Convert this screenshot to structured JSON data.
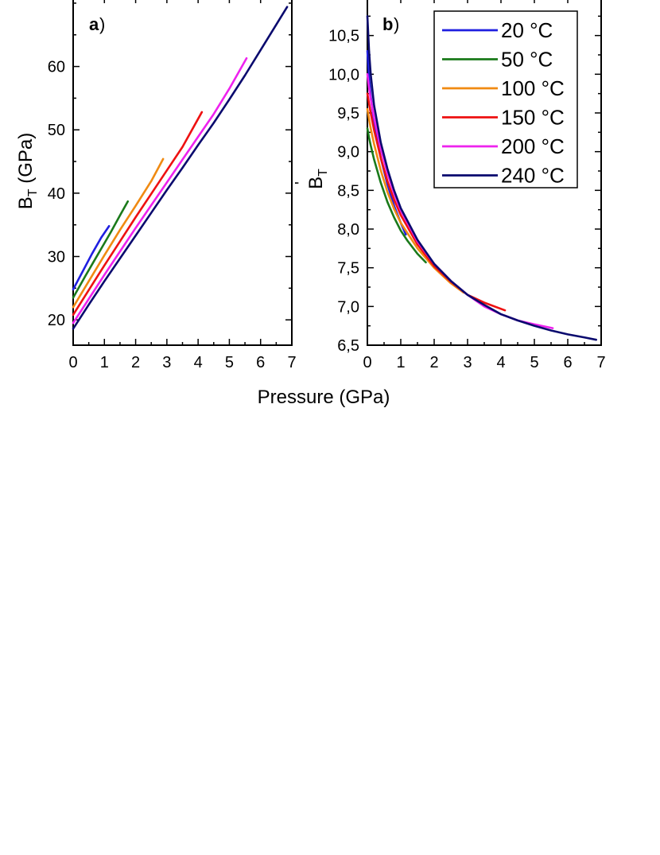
{
  "chart_data": [
    {
      "type": "line",
      "panel": "a",
      "panel_label": "a",
      "ylabel": "B",
      "ylabel_sub": "T",
      "ylabel_unit": " (GPa)",
      "xlabel": "Pressure (GPa)",
      "xlim": [
        0,
        7
      ],
      "ylim": [
        16,
        71
      ],
      "xticks": [
        0,
        1,
        2,
        3,
        4,
        5,
        6,
        7
      ],
      "yticks": [
        20,
        30,
        40,
        50,
        60
      ],
      "grid": false,
      "series": [
        {
          "name": "20 °C",
          "color": "#1f1fe0",
          "x": [
            0,
            0.3,
            0.6,
            0.9,
            1.15
          ],
          "y": [
            24.8,
            27.6,
            30.4,
            33.0,
            34.8
          ]
        },
        {
          "name": "50 °C",
          "color": "#1a7a1a",
          "x": [
            0,
            0.4,
            0.8,
            1.2,
            1.5,
            1.75
          ],
          "y": [
            23.5,
            27.0,
            30.4,
            33.8,
            36.5,
            38.7
          ]
        },
        {
          "name": "100 °C",
          "color": "#f08a12",
          "x": [
            0,
            0.5,
            1.0,
            1.5,
            2.0,
            2.5,
            2.88
          ],
          "y": [
            22.0,
            26.1,
            30.2,
            34.2,
            38.0,
            41.9,
            45.4
          ]
        },
        {
          "name": "150 °C",
          "color": "#ee1111",
          "x": [
            0,
            0.5,
            1.0,
            1.5,
            2.0,
            2.5,
            3.0,
            3.5,
            4.12
          ],
          "y": [
            20.8,
            24.7,
            28.6,
            32.4,
            36.2,
            39.9,
            43.6,
            47.3,
            52.8
          ]
        },
        {
          "name": "200 °C",
          "color": "#ee22ee",
          "x": [
            0,
            0.5,
            1.0,
            1.5,
            2.0,
            2.5,
            3.0,
            3.5,
            4.0,
            4.5,
            5.0,
            5.55
          ],
          "y": [
            19.5,
            23.3,
            27.1,
            30.8,
            34.5,
            38.1,
            41.7,
            45.3,
            48.9,
            52.5,
            56.5,
            61.3
          ]
        },
        {
          "name": "240 °C",
          "color": "#0a0a6e",
          "x": [
            0,
            0.5,
            1.0,
            1.5,
            2.0,
            2.5,
            3.0,
            3.5,
            4.0,
            4.5,
            5.0,
            5.5,
            6.0,
            6.5,
            6.85
          ],
          "y": [
            18.6,
            22.4,
            26.1,
            29.7,
            33.3,
            36.9,
            40.5,
            44.0,
            47.6,
            51.1,
            54.8,
            58.6,
            62.6,
            66.6,
            69.4
          ]
        }
      ]
    },
    {
      "type": "line",
      "panel": "b",
      "panel_label": "b",
      "ylabel": "B",
      "ylabel_sub": "T",
      "ylabel_prime": "'",
      "xlabel": "Pressure (GPa)",
      "xlim": [
        0,
        7
      ],
      "ylim": [
        6.5,
        11.0
      ],
      "xticks": [
        0,
        1,
        2,
        3,
        4,
        5,
        6,
        7
      ],
      "yticks": [
        6.5,
        7.0,
        7.5,
        8.0,
        8.5,
        9.0,
        9.5,
        10.0,
        10.5
      ],
      "ytick_labels": [
        "6,5",
        "7,0",
        "7,5",
        "8,0",
        "8,5",
        "9,0",
        "9,5",
        "10,0",
        "10,5"
      ],
      "grid": false,
      "legend_position": "top-right",
      "series": [
        {
          "name": "20 °C",
          "color": "#1f1fe0",
          "x": [
            0,
            0.05,
            0.1,
            0.2,
            0.4,
            0.6,
            0.8,
            1.0,
            1.15
          ],
          "y": [
            10.3,
            9.95,
            9.72,
            9.38,
            8.92,
            8.58,
            8.3,
            8.08,
            7.93
          ]
        },
        {
          "name": "50 °C",
          "color": "#1a7a1a",
          "x": [
            0,
            0.05,
            0.1,
            0.2,
            0.4,
            0.6,
            0.8,
            1.0,
            1.2,
            1.5,
            1.75
          ],
          "y": [
            9.3,
            9.18,
            9.08,
            8.9,
            8.6,
            8.35,
            8.15,
            7.98,
            7.85,
            7.68,
            7.57
          ]
        },
        {
          "name": "100 °C",
          "color": "#f08a12",
          "x": [
            0,
            0.05,
            0.1,
            0.2,
            0.4,
            0.6,
            0.8,
            1.0,
            1.5,
            2.0,
            2.5,
            2.88
          ],
          "y": [
            9.55,
            9.42,
            9.3,
            9.1,
            8.76,
            8.48,
            8.26,
            8.08,
            7.75,
            7.5,
            7.3,
            7.18
          ]
        },
        {
          "name": "150 °C",
          "color": "#ee1111",
          "x": [
            0,
            0.05,
            0.1,
            0.2,
            0.4,
            0.6,
            0.8,
            1.0,
            1.5,
            2.0,
            2.5,
            3.0,
            3.5,
            4.12
          ],
          "y": [
            9.75,
            9.62,
            9.5,
            9.28,
            8.92,
            8.62,
            8.38,
            8.18,
            7.8,
            7.52,
            7.32,
            7.15,
            7.05,
            6.95
          ]
        },
        {
          "name": "200 °C",
          "color": "#ee22ee",
          "x": [
            0,
            0.05,
            0.1,
            0.2,
            0.4,
            0.6,
            0.8,
            1.0,
            1.5,
            2.0,
            2.5,
            3.0,
            3.5,
            4.0,
            4.5,
            5.0,
            5.55
          ],
          "y": [
            10.0,
            9.82,
            9.68,
            9.44,
            9.04,
            8.72,
            8.46,
            8.24,
            7.84,
            7.55,
            7.33,
            7.15,
            7.0,
            6.9,
            6.82,
            6.77,
            6.72
          ]
        },
        {
          "name": "240 °C",
          "color": "#0a0a6e",
          "x": [
            0,
            0.05,
            0.1,
            0.2,
            0.4,
            0.6,
            0.8,
            1.0,
            1.5,
            2.0,
            2.5,
            3.0,
            3.5,
            4.0,
            4.5,
            5.0,
            5.5,
            6.0,
            6.5,
            6.85
          ],
          "y": [
            10.75,
            10.3,
            10.0,
            9.6,
            9.12,
            8.78,
            8.5,
            8.27,
            7.86,
            7.55,
            7.33,
            7.15,
            7.02,
            6.9,
            6.82,
            6.75,
            6.69,
            6.64,
            6.6,
            6.57
          ]
        }
      ]
    }
  ],
  "legend": [
    {
      "label": "20 °C",
      "color": "#1f1fe0"
    },
    {
      "label": "50 °C",
      "color": "#1a7a1a"
    },
    {
      "label": "100 °C",
      "color": "#f08a12"
    },
    {
      "label": "150 °C",
      "color": "#ee1111"
    },
    {
      "label": "200 °C",
      "color": "#ee22ee"
    },
    {
      "label": "240 °C",
      "color": "#0a0a6e"
    }
  ]
}
